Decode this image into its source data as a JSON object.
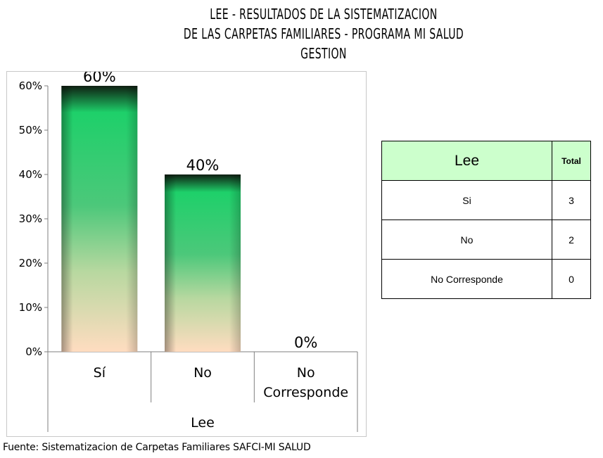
{
  "title_lines": [
    "LEE - RESULTADOS DE LA SISTEMATIZACION",
    "DE LAS CARPETAS FAMILIARES - PROGRAMA MI SALUD",
    "GESTION"
  ],
  "chart_data": {
    "type": "bar",
    "categories": [
      "Sí",
      "No",
      "No Corresponde"
    ],
    "values": [
      60,
      40,
      0
    ],
    "data_labels": [
      "60%",
      "40%",
      "0%"
    ],
    "xlabel": "Lee",
    "ylabel": "",
    "ylim": [
      0,
      60
    ],
    "yticks": [
      0,
      10,
      20,
      30,
      40,
      50,
      60
    ],
    "ytick_labels": [
      "0%",
      "10%",
      "20%",
      "30%",
      "40%",
      "50%",
      "60%"
    ],
    "grid": false,
    "legend": "none",
    "bar_colors": [
      "#0f1f12",
      "#1ed06a",
      "#a8dca0",
      "#ffdcc0"
    ]
  },
  "table": {
    "header": [
      "Lee",
      "Total"
    ],
    "rows": [
      [
        "Si",
        "3"
      ],
      [
        "No",
        "2"
      ],
      [
        "No Corresponde",
        "0"
      ]
    ]
  },
  "source": "Fuente: Sistematizacion de Carpetas Familiares SAFCI-MI SALUD"
}
